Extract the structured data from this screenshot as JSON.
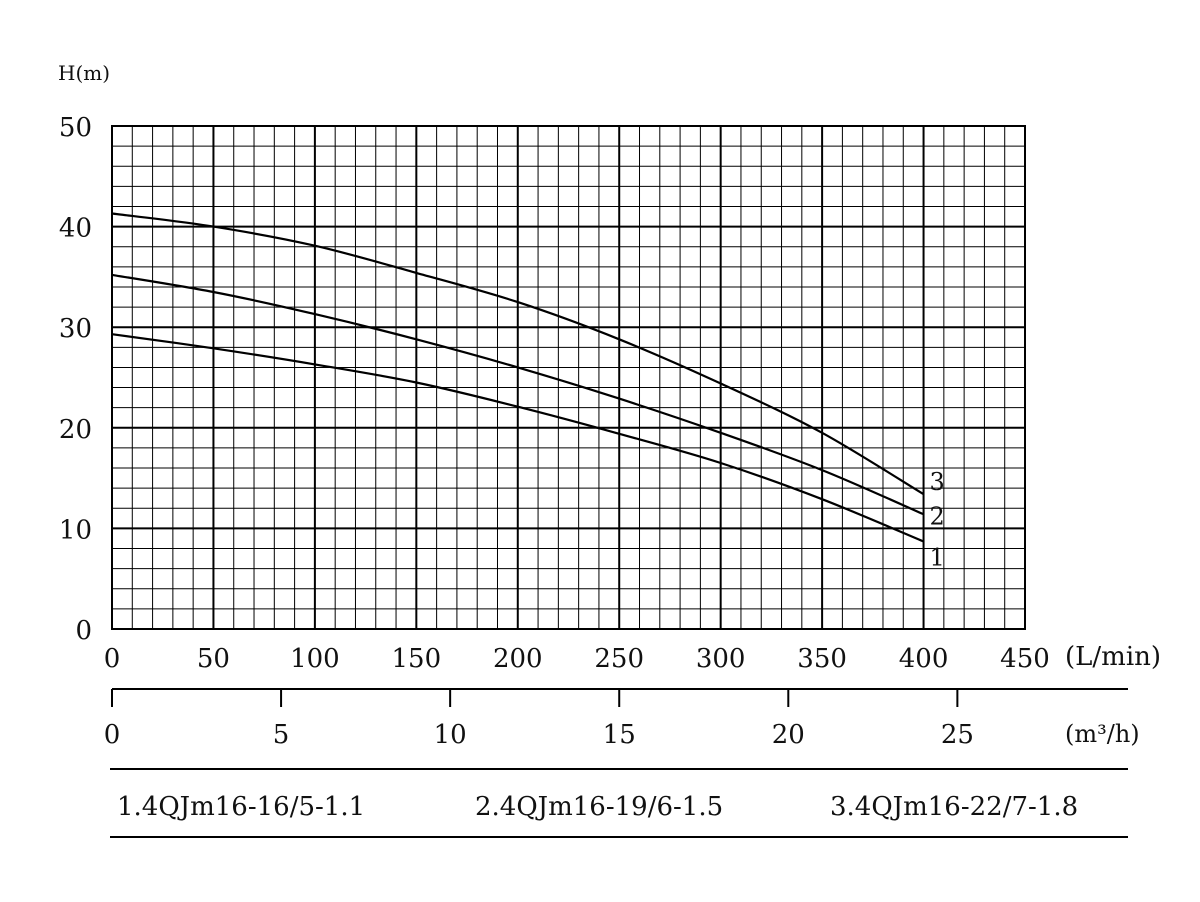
{
  "chart_data": {
    "type": "line",
    "ylabel": "H(m)",
    "y_ticks": [
      "0",
      "10",
      "20",
      "30",
      "40",
      "50"
    ],
    "ylim": [
      0,
      50
    ],
    "xlim": [
      0,
      450
    ],
    "x_ticks": [
      "0",
      "50",
      "100",
      "150",
      "200",
      "250",
      "300",
      "350",
      "400",
      "450"
    ],
    "x_unit": "(L/min)",
    "x2_ticks": [
      "0",
      "5",
      "10",
      "15",
      "20",
      "25"
    ],
    "x2_unit": "(m³/h)",
    "grid": true,
    "series": [
      {
        "name": "1",
        "x": [
          0,
          50,
          100,
          150,
          200,
          250,
          300,
          350,
          400
        ],
        "y": [
          29.3,
          27.9,
          26.3,
          24.5,
          22.1,
          19.4,
          16.5,
          12.9,
          8.7
        ]
      },
      {
        "name": "2",
        "x": [
          0,
          50,
          100,
          150,
          200,
          250,
          300,
          350,
          400
        ],
        "y": [
          35.2,
          33.5,
          31.3,
          28.8,
          26.0,
          22.9,
          19.5,
          15.8,
          11.4
        ]
      },
      {
        "name": "3",
        "x": [
          0,
          50,
          100,
          150,
          200,
          250,
          300,
          350,
          400
        ],
        "y": [
          41.3,
          40.0,
          38.1,
          35.4,
          32.5,
          28.8,
          24.4,
          19.5,
          13.4
        ]
      }
    ],
    "models": [
      "1.4QJm16-16/5-1.1",
      "2.4QJm16-19/6-1.5",
      "3.4QJm16-22/7-1.8"
    ]
  }
}
